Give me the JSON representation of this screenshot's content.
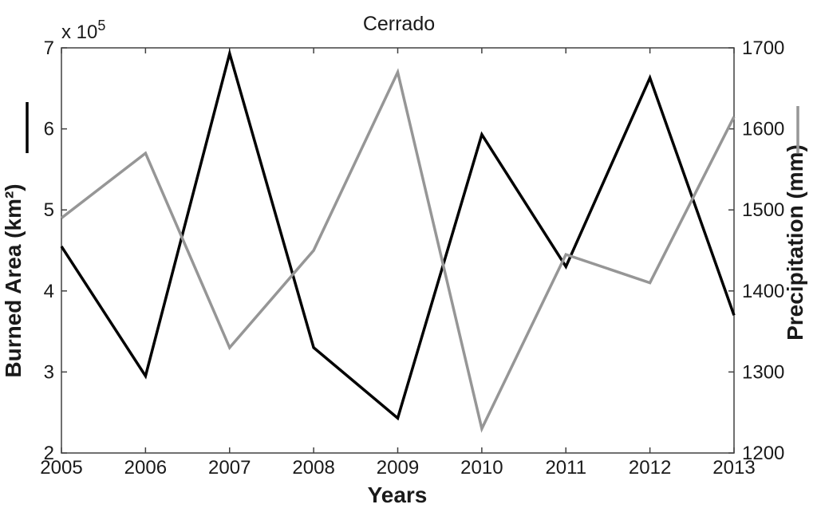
{
  "title": "Cerrado",
  "axes": {
    "x": {
      "label": "Years",
      "ticks": [
        2005,
        2006,
        2007,
        2008,
        2009,
        2010,
        2011,
        2012,
        2013
      ]
    },
    "y_left": {
      "label": "Burned Area (km²)",
      "exponent_prefix": "x 10",
      "exponent_power": "5",
      "ticks": [
        7,
        6,
        5,
        4,
        3,
        2
      ],
      "range": [
        2,
        7
      ]
    },
    "y_right": {
      "label": "Precipitation (mm)",
      "ticks": [
        1700,
        1600,
        1500,
        1400,
        1300,
        1200
      ],
      "range": [
        1200,
        1700
      ]
    }
  },
  "chart_data": {
    "type": "line",
    "title": "Cerrado",
    "xlabel": "Years",
    "x": [
      2005,
      2006,
      2007,
      2008,
      2009,
      2010,
      2011,
      2012,
      2013
    ],
    "series": [
      {
        "name": "Burned Area",
        "unit": "x10^5 km²",
        "y_axis": "left",
        "color": "#000000",
        "values": [
          4.55,
          2.95,
          6.93,
          3.3,
          2.43,
          5.93,
          4.3,
          6.63,
          3.7
        ]
      },
      {
        "name": "Precipitation",
        "unit": "mm",
        "y_axis": "right",
        "color": "#969696",
        "values": [
          1490,
          1570,
          1330,
          1450,
          1670,
          1230,
          1445,
          1410,
          1615
        ]
      }
    ],
    "y_left_range": [
      2,
      7
    ],
    "y_left_scale": "x 10^5",
    "y_right_range": [
      1200,
      1700
    ],
    "grid": false,
    "legend": "vertical line swatches beside each y-axis label",
    "legend_swatches": [
      {
        "series": "Burned Area",
        "color": "#000000",
        "position": "left-axis-label"
      },
      {
        "series": "Precipitation",
        "color": "#969696",
        "position": "right-axis-label"
      }
    ]
  },
  "colors": {
    "black_series": "#000000",
    "gray_series": "#969696",
    "axis": "#404040",
    "background": "#ffffff"
  }
}
